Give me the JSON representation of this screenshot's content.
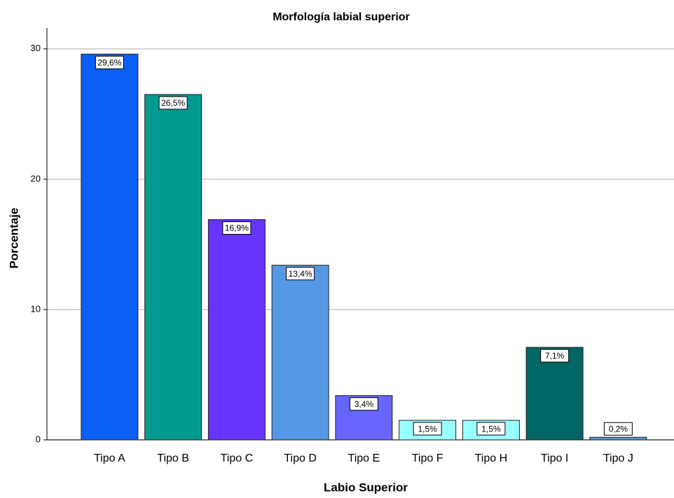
{
  "chart_data": {
    "type": "bar",
    "title": "Morfología labial superior",
    "x_label": "Labio Superior",
    "y_label": "Porcentaje",
    "categories": [
      "Tipo A",
      "Tipo B",
      "Tipo C",
      "Tipo D",
      "Tipo E",
      "Tipo F",
      "Tipo H",
      "Tipo I",
      "Tipo J"
    ],
    "values": [
      29.6,
      26.5,
      16.9,
      13.4,
      3.4,
      1.5,
      1.5,
      7.1,
      0.2
    ],
    "value_labels": [
      "29,6%",
      "26,5%",
      "16,9%",
      "13,4%",
      "3,4%",
      "1,5%",
      "1,5%",
      "7,1%",
      "0,2%"
    ],
    "colors": [
      "#0a5ff5",
      "#009990",
      "#6633ff",
      "#5599e6",
      "#6666ff",
      "#99ffff",
      "#99ffff",
      "#006666",
      "#5599e6"
    ],
    "ylim": [
      0,
      31.6
    ],
    "yticks": [
      0,
      10,
      20,
      30
    ],
    "grid": true
  }
}
